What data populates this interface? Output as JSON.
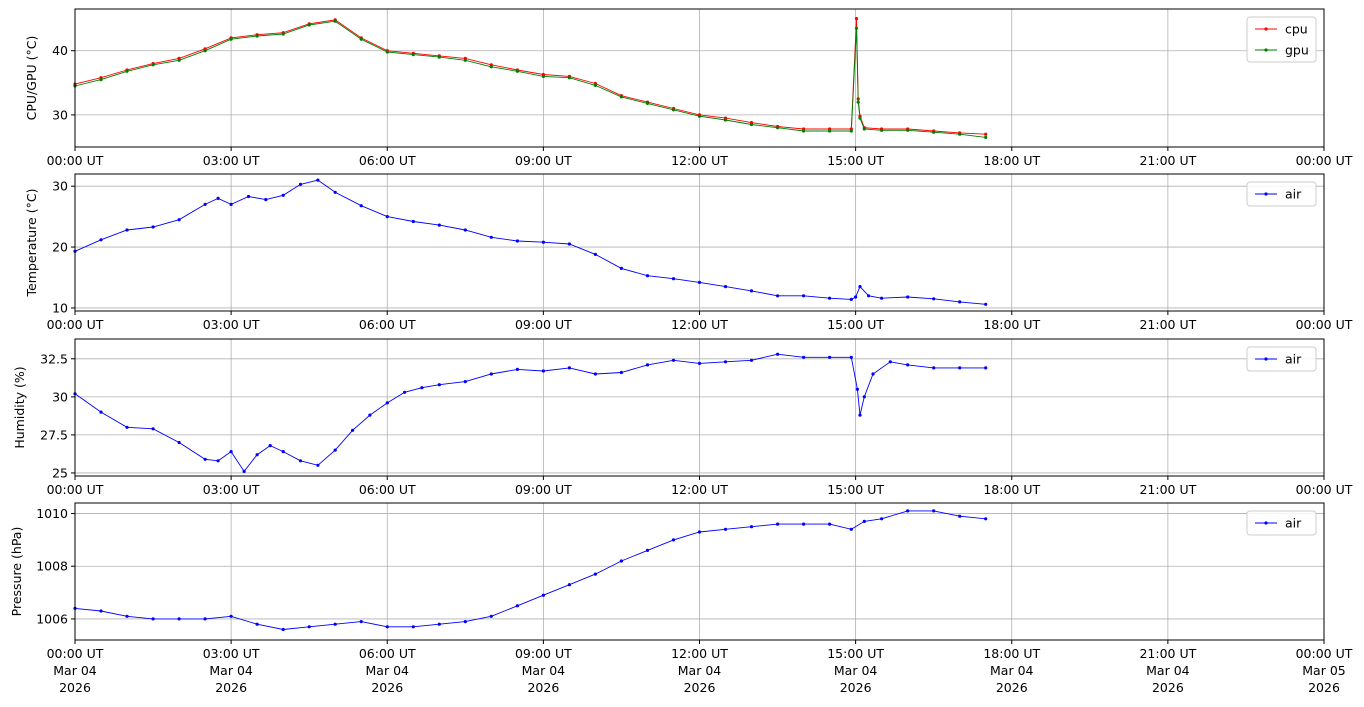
{
  "x_tick_labels": [
    "00:00 UT",
    "03:00 UT",
    "06:00 UT",
    "09:00 UT",
    "12:00 UT",
    "15:00 UT",
    "18:00 UT",
    "21:00 UT",
    "00:00 UT"
  ],
  "x_tick_dates": [
    "Mar 04",
    "Mar 04",
    "Mar 04",
    "Mar 04",
    "Mar 04",
    "Mar 04",
    "Mar 04",
    "Mar 04",
    "Mar 05"
  ],
  "x_tick_years": [
    "2026",
    "2026",
    "2026",
    "2026",
    "2026",
    "2026",
    "2026",
    "2026",
    "2026"
  ],
  "chart_data": [
    {
      "type": "line",
      "ylabel": "CPU/GPU (°C)",
      "xlabel": "",
      "xlim": [
        "2026-03-04 00:00 UT",
        "2026-03-05 00:00 UT"
      ],
      "ylim": [
        25,
        46.5
      ],
      "yticks": [
        30,
        40
      ],
      "grid": true,
      "legend": "top-right",
      "x": [
        "00:00",
        "00:30",
        "01:00",
        "01:30",
        "02:00",
        "02:30",
        "03:00",
        "03:30",
        "04:00",
        "04:30",
        "05:00",
        "05:30",
        "06:00",
        "06:30",
        "07:00",
        "07:30",
        "08:00",
        "08:30",
        "09:00",
        "09:30",
        "10:00",
        "10:30",
        "11:00",
        "11:30",
        "12:00",
        "12:30",
        "13:00",
        "13:30",
        "14:00",
        "14:30",
        "14:55",
        "15:01",
        "15:03",
        "15:05",
        "15:10",
        "15:30",
        "16:00",
        "16:30",
        "17:00",
        "17:30"
      ],
      "series": [
        {
          "name": "cpu",
          "color": "#ff0000",
          "values": [
            34.8,
            35.8,
            37.0,
            38.0,
            38.8,
            40.3,
            42.0,
            42.5,
            42.8,
            44.2,
            44.8,
            42.0,
            40.0,
            39.6,
            39.2,
            38.8,
            37.8,
            37.0,
            36.3,
            36.0,
            34.9,
            33.0,
            32.0,
            31.0,
            30.0,
            29.5,
            28.8,
            28.2,
            27.8,
            27.8,
            27.8,
            45.0,
            32.5,
            29.8,
            28.0,
            27.8,
            27.8,
            27.5,
            27.2,
            27.0
          ]
        },
        {
          "name": "gpu",
          "color": "#008000",
          "values": [
            34.5,
            35.5,
            36.8,
            37.8,
            38.5,
            40.0,
            41.8,
            42.3,
            42.6,
            44.0,
            44.6,
            41.8,
            39.8,
            39.4,
            39.0,
            38.5,
            37.5,
            36.8,
            36.0,
            35.8,
            34.6,
            32.8,
            31.8,
            30.8,
            29.8,
            29.2,
            28.5,
            28.0,
            27.5,
            27.5,
            27.5,
            43.5,
            32.0,
            29.5,
            27.8,
            27.6,
            27.6,
            27.3,
            27.0,
            26.5
          ]
        }
      ]
    },
    {
      "type": "line",
      "ylabel": "Temperature (°C)",
      "xlabel": "",
      "xlim": [
        "2026-03-04 00:00 UT",
        "2026-03-05 00:00 UT"
      ],
      "ylim": [
        9.5,
        32
      ],
      "yticks": [
        10,
        20,
        30
      ],
      "grid": true,
      "legend": "top-right",
      "x": [
        "00:00",
        "00:30",
        "01:00",
        "01:30",
        "02:00",
        "02:30",
        "02:45",
        "03:00",
        "03:20",
        "03:40",
        "04:00",
        "04:20",
        "04:40",
        "05:00",
        "05:30",
        "06:00",
        "06:30",
        "07:00",
        "07:30",
        "08:00",
        "08:30",
        "09:00",
        "09:30",
        "10:00",
        "10:30",
        "11:00",
        "11:30",
        "12:00",
        "12:30",
        "13:00",
        "13:30",
        "14:00",
        "14:30",
        "14:55",
        "15:00",
        "15:05",
        "15:15",
        "15:30",
        "16:00",
        "16:30",
        "17:00",
        "17:30"
      ],
      "series": [
        {
          "name": "air",
          "color": "#0000ff",
          "values": [
            19.3,
            21.2,
            22.8,
            23.3,
            24.5,
            27.0,
            28.0,
            27.0,
            28.3,
            27.8,
            28.5,
            30.3,
            31.0,
            29.0,
            26.8,
            25.0,
            24.2,
            23.6,
            22.8,
            21.6,
            21.0,
            20.8,
            20.5,
            18.8,
            16.5,
            15.3,
            14.8,
            14.2,
            13.5,
            12.8,
            12.0,
            12.0,
            11.6,
            11.4,
            11.8,
            13.5,
            12.0,
            11.6,
            11.8,
            11.5,
            11.0,
            10.6
          ]
        }
      ]
    },
    {
      "type": "line",
      "ylabel": "Humidity (%)",
      "xlabel": "",
      "xlim": [
        "2026-03-04 00:00 UT",
        "2026-03-05 00:00 UT"
      ],
      "ylim": [
        24.8,
        33.8
      ],
      "yticks": [
        25.0,
        27.5,
        30.0,
        32.5
      ],
      "grid": true,
      "legend": "top-right",
      "x": [
        "00:00",
        "00:30",
        "01:00",
        "01:30",
        "02:00",
        "02:30",
        "02:45",
        "03:00",
        "03:15",
        "03:30",
        "03:45",
        "04:00",
        "04:20",
        "04:40",
        "05:00",
        "05:20",
        "05:40",
        "06:00",
        "06:20",
        "06:40",
        "07:00",
        "07:30",
        "08:00",
        "08:30",
        "09:00",
        "09:30",
        "10:00",
        "10:30",
        "11:00",
        "11:30",
        "12:00",
        "12:30",
        "13:00",
        "13:30",
        "14:00",
        "14:30",
        "14:55",
        "15:02",
        "15:05",
        "15:10",
        "15:20",
        "15:40",
        "16:00",
        "16:30",
        "17:00",
        "17:30"
      ],
      "series": [
        {
          "name": "air",
          "color": "#0000ff",
          "values": [
            30.2,
            29.0,
            28.0,
            27.9,
            27.0,
            25.9,
            25.8,
            26.4,
            25.1,
            26.2,
            26.8,
            26.4,
            25.8,
            25.5,
            26.5,
            27.8,
            28.8,
            29.6,
            30.3,
            30.6,
            30.8,
            31.0,
            31.5,
            31.8,
            31.7,
            31.9,
            31.5,
            31.6,
            32.1,
            32.4,
            32.2,
            32.3,
            32.4,
            32.8,
            32.6,
            32.6,
            32.6,
            30.5,
            28.8,
            30.0,
            31.5,
            32.3,
            32.1,
            31.9,
            31.9,
            31.9
          ]
        }
      ]
    },
    {
      "type": "line",
      "ylabel": "Pressure (hPa)",
      "xlabel": "",
      "xlim": [
        "2026-03-04 00:00 UT",
        "2026-03-05 00:00 UT"
      ],
      "ylim": [
        1005.2,
        1010.4
      ],
      "yticks": [
        1006,
        1008,
        1010
      ],
      "grid": true,
      "legend": "top-right",
      "x": [
        "00:00",
        "00:30",
        "01:00",
        "01:30",
        "02:00",
        "02:30",
        "03:00",
        "03:30",
        "04:00",
        "04:30",
        "05:00",
        "05:30",
        "06:00",
        "06:30",
        "07:00",
        "07:30",
        "08:00",
        "08:30",
        "09:00",
        "09:30",
        "10:00",
        "10:30",
        "11:00",
        "11:30",
        "12:00",
        "12:30",
        "13:00",
        "13:30",
        "14:00",
        "14:30",
        "14:55",
        "15:10",
        "15:30",
        "16:00",
        "16:30",
        "17:00",
        "17:30"
      ],
      "series": [
        {
          "name": "air",
          "color": "#0000ff",
          "values": [
            1006.4,
            1006.3,
            1006.1,
            1006.0,
            1006.0,
            1006.0,
            1006.1,
            1005.8,
            1005.6,
            1005.7,
            1005.8,
            1005.9,
            1005.7,
            1005.7,
            1005.8,
            1005.9,
            1006.1,
            1006.5,
            1006.9,
            1007.3,
            1007.7,
            1008.2,
            1008.6,
            1009.0,
            1009.3,
            1009.4,
            1009.5,
            1009.6,
            1009.6,
            1009.6,
            1009.4,
            1009.7,
            1009.8,
            1010.1,
            1010.1,
            1009.9,
            1009.8
          ]
        }
      ]
    }
  ]
}
